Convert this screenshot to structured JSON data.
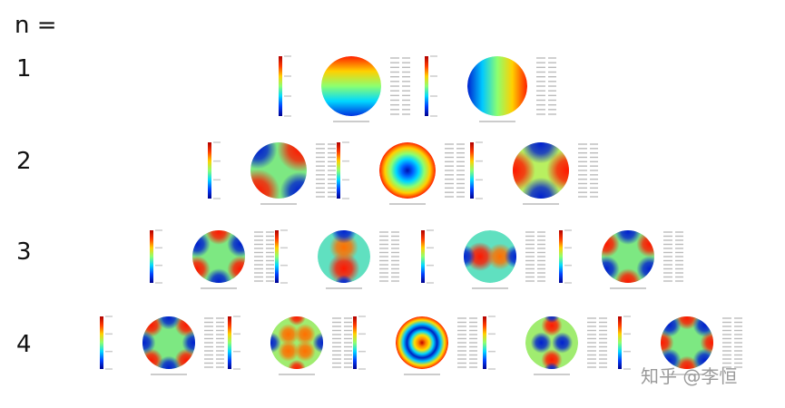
{
  "header": {
    "label": "n ="
  },
  "rows": [
    {
      "n": "1"
    },
    {
      "n": "2"
    },
    {
      "n": "3"
    },
    {
      "n": "4"
    }
  ],
  "watermark": "知乎 @李恒"
}
